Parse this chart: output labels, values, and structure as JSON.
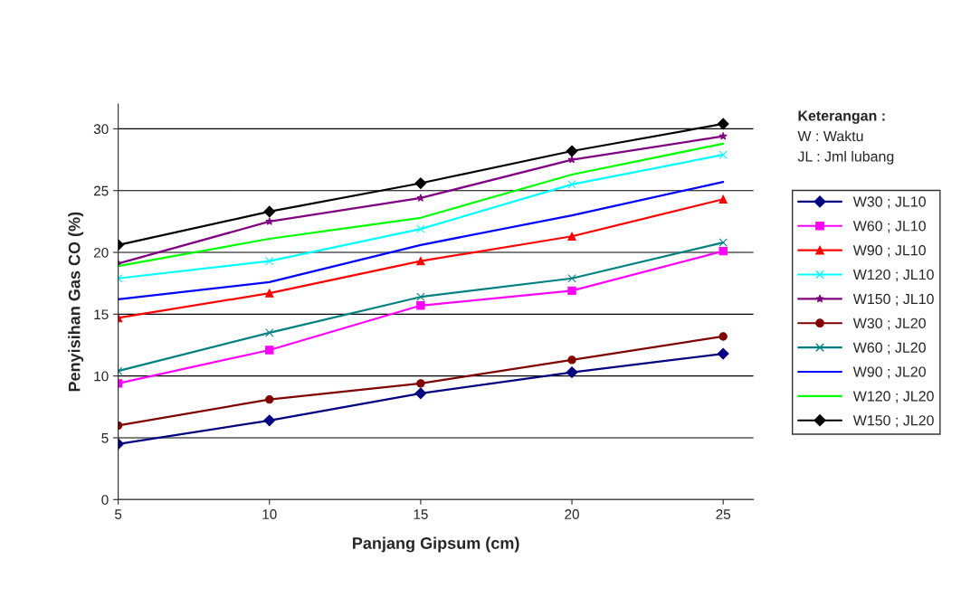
{
  "chart_data": {
    "type": "line",
    "xlabel": "Panjang Gipsum (cm)",
    "ylabel": "Penyisihan Gas CO (%)",
    "x": [
      5,
      10,
      15,
      20,
      25
    ],
    "xlim": [
      5,
      26
    ],
    "xticks": [
      5,
      10,
      15,
      20,
      25
    ],
    "ylim": [
      0,
      32
    ],
    "yticks": [
      0,
      5,
      10,
      15,
      20,
      25,
      30
    ],
    "grid": "y",
    "legend": "right",
    "annotations": [
      "Keterangan :",
      "W : Waktu",
      "JL : Jml lubang"
    ],
    "series": [
      {
        "name": "W30 ; JL10",
        "color": "#000080",
        "marker": "diamond",
        "values": [
          4.5,
          6.4,
          8.6,
          10.3,
          11.8
        ]
      },
      {
        "name": "W60 ; JL10",
        "color": "#ff00ff",
        "marker": "square",
        "values": [
          9.4,
          12.1,
          15.7,
          16.9,
          20.1
        ]
      },
      {
        "name": "W90 ; JL10",
        "color": "#ff0000",
        "marker": "triangle",
        "values": [
          14.7,
          16.7,
          19.3,
          21.3,
          24.3
        ]
      },
      {
        "name": "W120 ; JL10",
        "color": "#00ffff",
        "marker": "cross",
        "values": [
          17.9,
          19.3,
          21.9,
          25.5,
          27.9
        ]
      },
      {
        "name": "W150 ; JL10",
        "color": "#800080",
        "marker": "star",
        "values": [
          19.1,
          22.5,
          24.4,
          27.5,
          29.4
        ]
      },
      {
        "name": "W30 ; JL20",
        "color": "#800000",
        "marker": "circle",
        "values": [
          6.0,
          8.1,
          9.4,
          11.3,
          13.2
        ]
      },
      {
        "name": "W60 ; JL20",
        "color": "#008080",
        "marker": "cross",
        "values": [
          10.4,
          13.5,
          16.4,
          17.9,
          20.8
        ]
      },
      {
        "name": "W90 ; JL20",
        "color": "#0000ff",
        "marker": "none",
        "values": [
          16.2,
          17.6,
          20.6,
          23.0,
          25.7
        ]
      },
      {
        "name": "W120 ; JL20",
        "color": "#00ff00",
        "marker": "none",
        "values": [
          18.9,
          21.1,
          22.8,
          26.3,
          28.8
        ]
      },
      {
        "name": "W150 ; JL20",
        "color": "#000000",
        "marker": "diamond",
        "values": [
          20.6,
          23.3,
          25.6,
          28.2,
          30.4
        ]
      }
    ]
  }
}
